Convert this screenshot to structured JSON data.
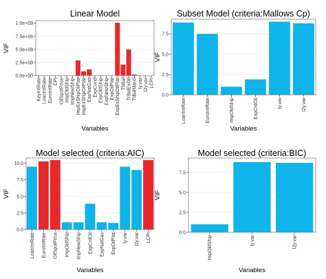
{
  "chart_data": [
    {
      "type": "bar",
      "title": "Linear Model",
      "xlabel": "Variables",
      "ylabel": "VIF",
      "color": "#e8282c",
      "ylim": [
        0,
        1050000000
      ],
      "y_ticks": [
        0,
        250000000,
        500000000,
        750000000,
        1000000000
      ],
      "y_tick_labels": [
        "0.0e+00",
        "2.5e+08",
        "5.0e+08",
        "7.5e+08",
        "1.0e+09"
      ],
      "categories": [
        "KeyIntRate",
        "LoanIntRate",
        "EuroIntRate",
        "CPI",
        "OilSpotPrice",
        "ImpOldShip",
        "ImpNewShip",
        "ImpExShipOilPlat",
        "ImpExShipOilPlat",
        "ExpNatGas",
        "ExpCond",
        "ExpOldShip",
        "ExpNewShip",
        "ExpOilPlat",
        "ExpExShipOilPlat",
        "TbBal",
        "TrBalExOil",
        "TtBalMand",
        "ly.var",
        "l2y.var",
        "LCPI"
      ],
      "values": [
        0,
        0,
        0,
        0,
        0,
        0,
        0,
        290000000,
        80000000,
        120000000,
        0,
        0,
        0,
        0,
        1010000000,
        210000000,
        500000000,
        20000000,
        0,
        0,
        0
      ]
    },
    {
      "type": "bar",
      "title": "Subset Model (criteria:Mallows Cp)",
      "xlabel": "Variables",
      "ylabel": "VIF",
      "color": "#0fb4ea",
      "ylim": [
        0,
        9.3
      ],
      "y_ticks": [
        0,
        2.5,
        5,
        7.5
      ],
      "y_tick_labels": [
        "0.0",
        "2.5",
        "5.0",
        "7.5"
      ],
      "categories": [
        "LoanIntRate",
        "EuroIntRate",
        "ImpOldShip",
        "ExpCrdOil",
        "ly.var",
        "l2y.var"
      ],
      "values": [
        8.9,
        7.5,
        1.0,
        1.9,
        9.0,
        8.8
      ]
    },
    {
      "type": "bar",
      "title": "Model selected (criteria:AIC)",
      "xlabel": "Variables",
      "ylabel": "VIF",
      "ylim": [
        0,
        10.8
      ],
      "y_ticks": [
        0,
        2.5,
        5,
        7.5,
        10
      ],
      "y_tick_labels": [
        "0.0",
        "2.5",
        "5.0",
        "7.5",
        "10.0"
      ],
      "categories": [
        "LoanIntRate",
        "EuroIntRate",
        "OilSpotPrice",
        "ImpOldShip",
        "ImpNewShip",
        "ExpCrdOil",
        "ExpNatGas",
        "ExpOilPlat",
        "ly.var",
        "l2y.var",
        "LCPI"
      ],
      "values": [
        9.5,
        10.3,
        10.5,
        1.1,
        1.1,
        3.9,
        1.1,
        1.0,
        9.5,
        9.0,
        10.5
      ],
      "colors": [
        "#0fb4ea",
        "#e8282c",
        "#e8282c",
        "#0fb4ea",
        "#0fb4ea",
        "#0fb4ea",
        "#0fb4ea",
        "#0fb4ea",
        "#0fb4ea",
        "#0fb4ea",
        "#e8282c"
      ]
    },
    {
      "type": "bar",
      "title": "Model selected (criteria:BIC)",
      "xlabel": "Variables",
      "ylabel": "VIF",
      "color": "#0fb4ea",
      "ylim": [
        0,
        9.3
      ],
      "y_ticks": [
        0,
        2.5,
        5,
        7.5
      ],
      "y_tick_labels": [
        "0.0",
        "2.5",
        "5.0",
        "7.5"
      ],
      "categories": [
        "ImpOldShip",
        "ly.var",
        "l2y.var"
      ],
      "values": [
        1.0,
        8.8,
        8.7
      ]
    }
  ]
}
